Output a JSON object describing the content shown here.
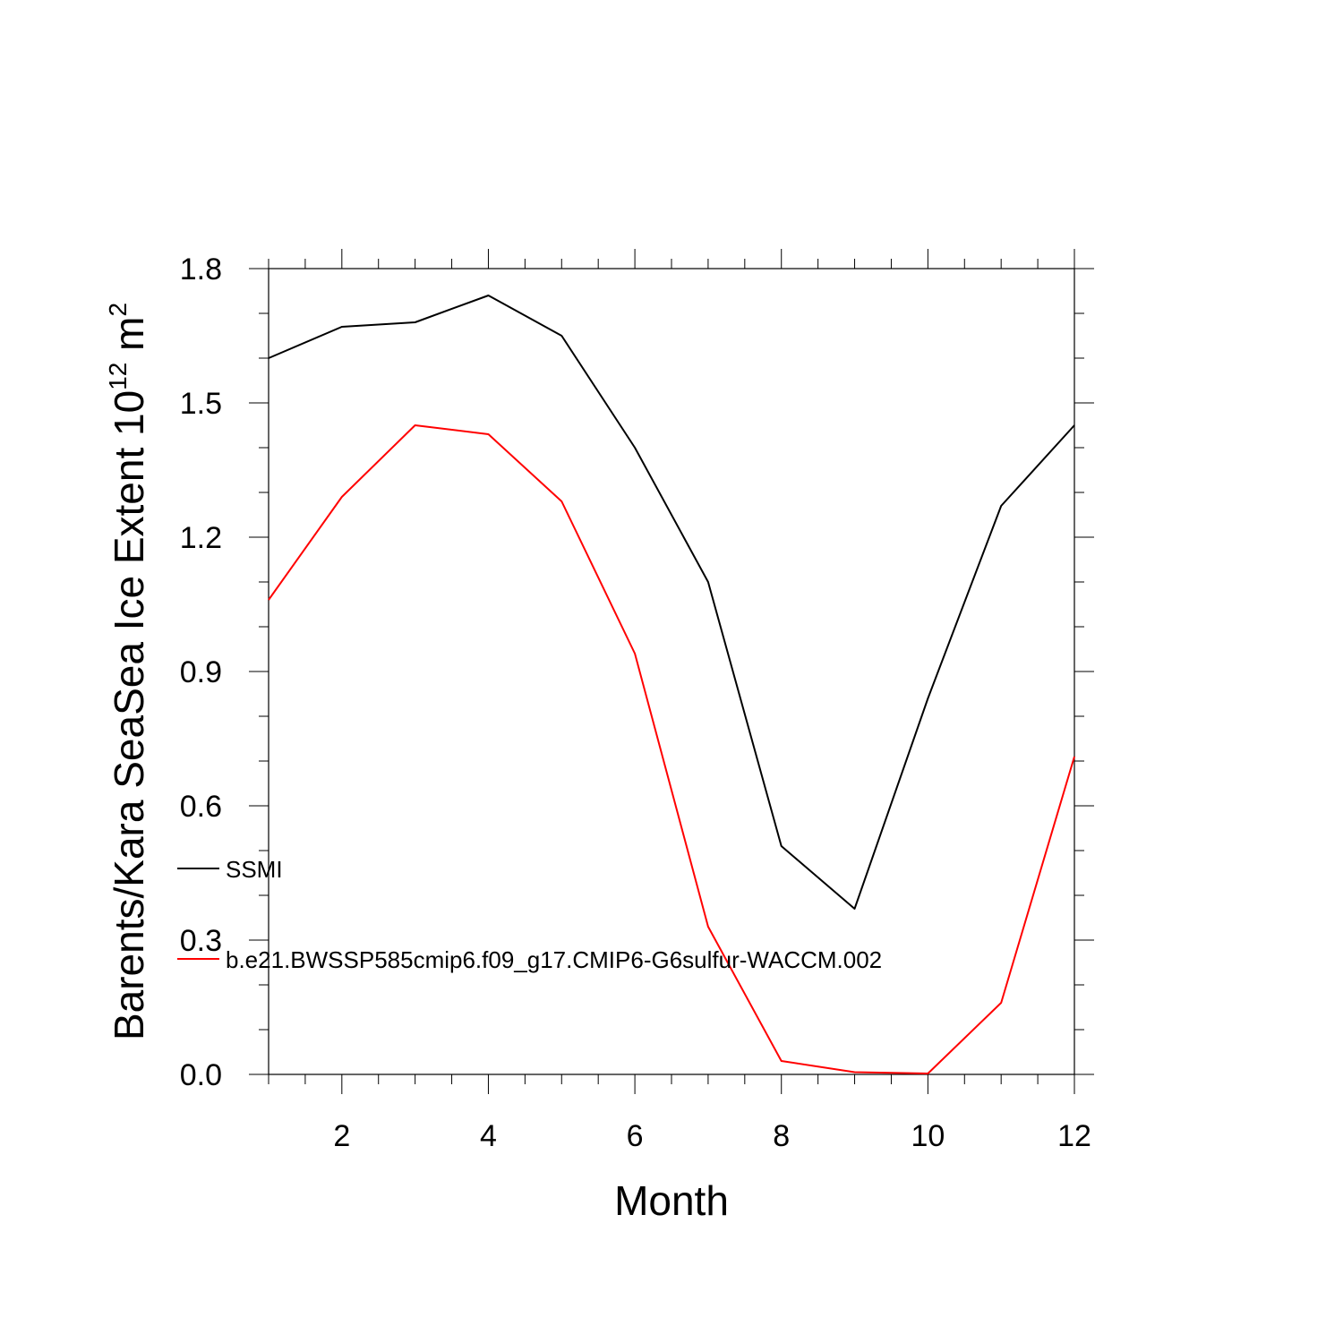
{
  "chart_data": {
    "type": "line",
    "title": "",
    "xlabel": "Month",
    "ylabel": {
      "base": "Barents/Kara SeaSea Ice Extent 10",
      "exp1": "12",
      "unit": " m",
      "exp2": "2"
    },
    "xlim": [
      1,
      12
    ],
    "ylim": [
      0,
      1.8
    ],
    "xticks": [
      "2",
      "4",
      "6",
      "8",
      "10",
      "12"
    ],
    "yticks": [
      "0.0",
      "0.3",
      "0.6",
      "0.9",
      "1.2",
      "1.5",
      "1.8"
    ],
    "grid": false,
    "legend_position": "left-bottom inside plot",
    "x": [
      1,
      2,
      3,
      4,
      5,
      6,
      7,
      8,
      9,
      10,
      11,
      12
    ],
    "series": [
      {
        "name": "SSMI",
        "color": "#000000",
        "values": [
          1.6,
          1.67,
          1.68,
          1.74,
          1.65,
          1.4,
          1.1,
          0.51,
          0.37,
          0.84,
          1.27,
          1.45
        ]
      },
      {
        "name": "b.e21.BWSSP585cmip6.f09_g17.CMIP6-G6sulfur-WACCM.002",
        "color": "#ff0000",
        "values": [
          1.06,
          1.29,
          1.45,
          1.43,
          1.28,
          0.94,
          0.33,
          0.03,
          0.005,
          0.002,
          0.16,
          0.71
        ]
      }
    ]
  }
}
